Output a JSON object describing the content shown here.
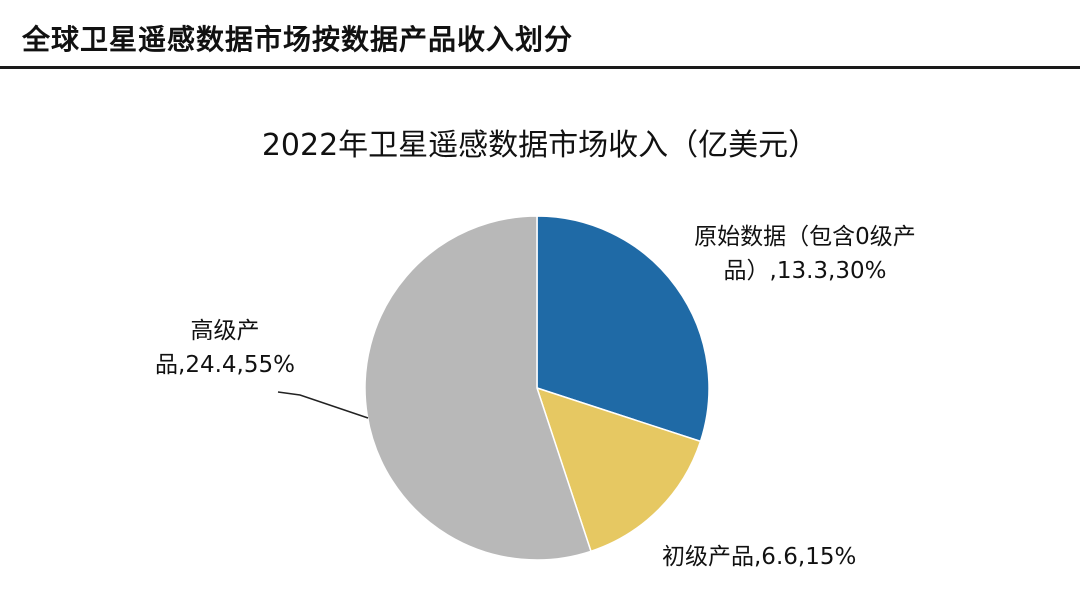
{
  "header": {
    "title": "全球卫星遥感数据市场按数据产品收入划分"
  },
  "chart_data": {
    "type": "pie",
    "title": "2022年卫星遥感数据市场收入（亿美元）",
    "slices": [
      {
        "name": "原始数据（包含0级产品）",
        "value": 13.3,
        "percent": 30,
        "color": "#1f6aa6",
        "label_lines": [
          "原始数据（包含0级产",
          "品）,13.3,30%"
        ]
      },
      {
        "name": "初级产品",
        "value": 6.6,
        "percent": 15,
        "color": "#e6c862",
        "label_lines": [
          "初级产品,6.6,15%"
        ]
      },
      {
        "name": "高级产品",
        "value": 24.4,
        "percent": 55,
        "color": "#b8b8b8",
        "label_lines": [
          "高级产",
          "品,24.4,55%"
        ]
      }
    ]
  }
}
